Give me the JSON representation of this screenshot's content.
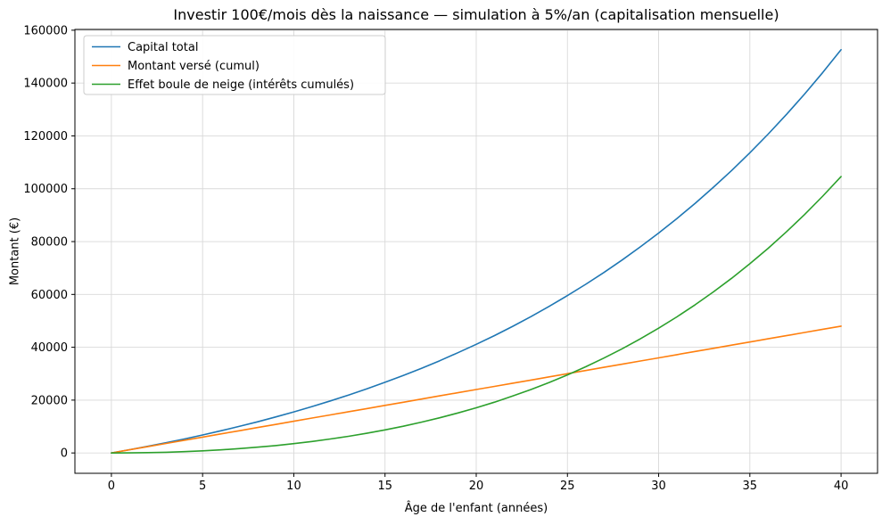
{
  "chart_data": {
    "type": "line",
    "title": "Investir 100€/mois dès la naissance — simulation à 5%/an (capitalisation mensuelle)",
    "xlabel": "Âge de l'enfant (années)",
    "ylabel": "Montant (€)",
    "x": [
      0,
      1,
      2,
      3,
      4,
      5,
      6,
      7,
      8,
      9,
      10,
      11,
      12,
      13,
      14,
      15,
      16,
      17,
      18,
      19,
      20,
      21,
      22,
      23,
      24,
      25,
      26,
      27,
      28,
      29,
      30,
      31,
      32,
      33,
      34,
      35,
      36,
      37,
      38,
      39,
      40
    ],
    "series": [
      {
        "name": "Capital total",
        "color": "#1f77b4",
        "values": [
          0,
          1228,
          2519,
          3875,
          5301,
          6801,
          8376,
          10033,
          11774,
          13604,
          15528,
          17551,
          19677,
          21911,
          24260,
          26730,
          29325,
          32053,
          34921,
          37936,
          41105,
          44436,
          47937,
          51617,
          55486,
          59553,
          63828,
          68321,
          73044,
          78009,
          83228,
          88714,
          94481,
          100542,
          106914,
          113612,
          120652,
          128053,
          135832,
          144010,
          152605
        ]
      },
      {
        "name": "Montant versé (cumul)",
        "color": "#ff7f0e",
        "values": [
          0,
          1200,
          2400,
          3600,
          4800,
          6000,
          7200,
          8400,
          9600,
          10800,
          12000,
          13200,
          14400,
          15600,
          16800,
          18000,
          19200,
          20400,
          21600,
          22800,
          24000,
          25200,
          26400,
          27600,
          28800,
          30000,
          31200,
          32400,
          33600,
          34800,
          36000,
          37200,
          38400,
          39600,
          40800,
          42000,
          43200,
          44400,
          45600,
          46800,
          48000
        ]
      },
      {
        "name": "Effet boule de neige (intérêts cumulés)",
        "color": "#2ca02c",
        "values": [
          0,
          28,
          119,
          275,
          501,
          801,
          1176,
          1633,
          2174,
          2804,
          3528,
          4351,
          5277,
          6311,
          7460,
          8730,
          10125,
          11653,
          13321,
          15136,
          17105,
          19236,
          21537,
          24017,
          26686,
          29553,
          32628,
          35921,
          39444,
          43209,
          47228,
          51514,
          56081,
          60942,
          66114,
          71612,
          77452,
          83653,
          90232,
          97210,
          104605
        ]
      }
    ],
    "xticks": [
      0,
      5,
      10,
      15,
      20,
      25,
      30,
      35,
      40
    ],
    "yticks": [
      0,
      20000,
      40000,
      60000,
      80000,
      100000,
      120000,
      140000,
      160000
    ],
    "xlim": [
      -2,
      42
    ],
    "ylim": [
      -7700,
      160300
    ],
    "grid": true,
    "legend_position": "upper left",
    "colors": {
      "grid": "#d9d9d9",
      "spine": "#000000",
      "text": "#000000",
      "background": "#ffffff",
      "legend_border": "#cccccc"
    }
  }
}
